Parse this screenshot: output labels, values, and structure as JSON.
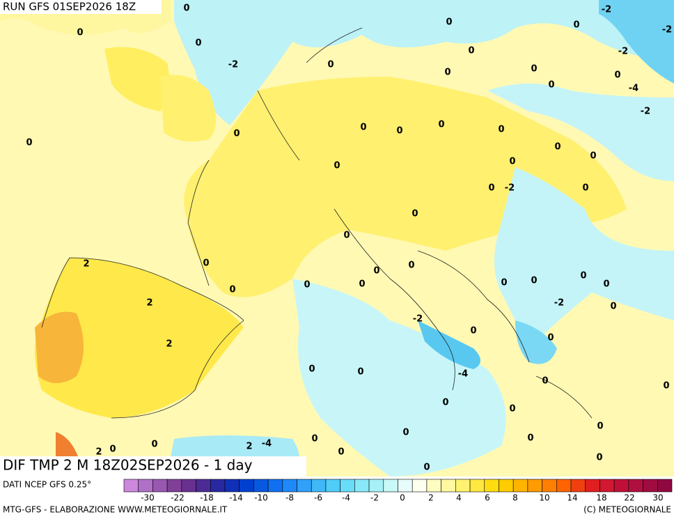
{
  "header": {
    "run": "RUN GFS 01SEP2026 18Z"
  },
  "map": {
    "contour_labels": [
      0,
      0,
      -2,
      0,
      0,
      0,
      -2,
      -2,
      0,
      0,
      0,
      0,
      -2,
      0,
      0,
      -4,
      -2,
      0,
      0,
      0,
      0,
      0,
      0,
      0,
      0,
      0,
      0,
      0,
      -2,
      0,
      0,
      0,
      2,
      0,
      0,
      0,
      0,
      0,
      0,
      0,
      0,
      0,
      0,
      2,
      -2,
      0,
      -2,
      0,
      2,
      0,
      0,
      0,
      -4,
      0,
      0,
      0,
      0,
      0,
      0,
      0,
      0,
      0,
      2,
      -4,
      2,
      0,
      0,
      0,
      0
    ]
  },
  "footer": {
    "title": "DIF TMP 2 M 18Z02SEP2026 - 1 day",
    "data_source": "DATI NCEP GFS 0.25°",
    "credit": "MTG-GFS - ELABORAZIONE WWW.METEOGIORNALE.IT",
    "copyright": "(C) METEOGIORNALE"
  },
  "colorbar": {
    "ticks": [
      -30,
      -22,
      -18,
      -14,
      -10,
      -8,
      -6,
      -4,
      -2,
      0,
      2,
      4,
      6,
      8,
      10,
      14,
      18,
      22,
      30
    ],
    "colors": [
      "#cc88dd",
      "#b070c8",
      "#9858b0",
      "#804098",
      "#6a3090",
      "#4c2c94",
      "#2828a0",
      "#1030b8",
      "#0040d0",
      "#0858e0",
      "#1070f0",
      "#2088f8",
      "#30a0f8",
      "#40b8f8",
      "#50ccf8",
      "#68dcf8",
      "#88e8f8",
      "#a8f0f8",
      "#c8f8f8",
      "#e8fcfc",
      "#fffff0",
      "#fffcc0",
      "#fff8a0",
      "#fff270",
      "#ffe840",
      "#ffdc10",
      "#ffcc00",
      "#ffb400",
      "#ff9c00",
      "#ff8000",
      "#ff6400",
      "#f04010",
      "#e02020",
      "#d01830",
      "#c01038",
      "#b01040",
      "#a00c40",
      "#900840"
    ]
  }
}
